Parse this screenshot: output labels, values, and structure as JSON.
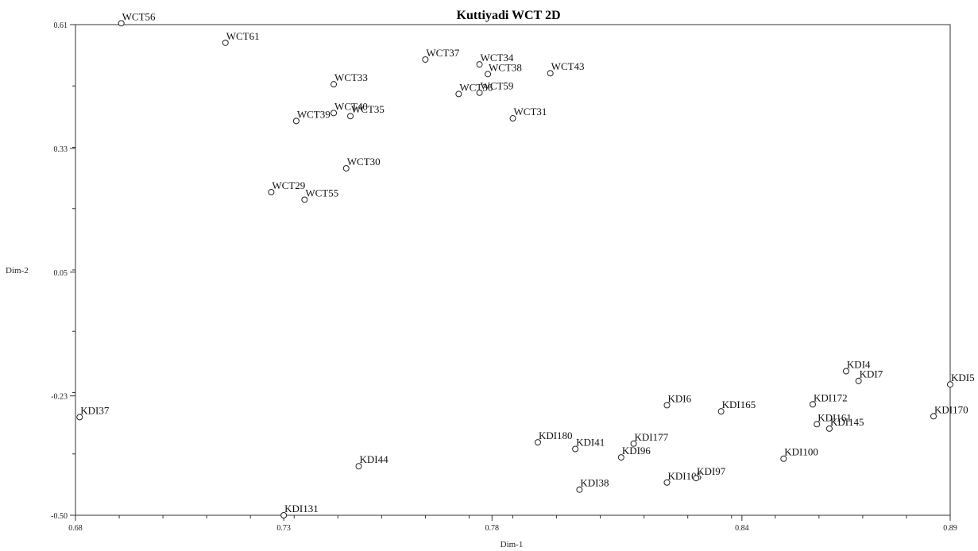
{
  "chart_data": {
    "type": "scatter",
    "title": "Kuttiyadi WCT 2D",
    "xlabel": "Dim-1",
    "ylabel": "Dim-2",
    "xlim": [
      0.68,
      0.89
    ],
    "ylim": [
      -0.5,
      0.61
    ],
    "xticks": [
      "0.68",
      "0.73",
      "0.78",
      "0.84",
      "0.89"
    ],
    "xtick_values": [
      0.68,
      0.73,
      0.78,
      0.84,
      0.89
    ],
    "yticks": [
      "0.61",
      "0.33",
      "0.05",
      "-0.23",
      "-0.50"
    ],
    "ytick_values": [
      0.61,
      0.33,
      0.05,
      -0.23,
      -0.5
    ],
    "grid": false,
    "points": [
      {
        "label": "WCT56",
        "x": 0.691,
        "y": 0.613
      },
      {
        "label": "WCT61",
        "x": 0.716,
        "y": 0.569
      },
      {
        "label": "WCT37",
        "x": 0.764,
        "y": 0.531
      },
      {
        "label": "WCT34",
        "x": 0.777,
        "y": 0.52
      },
      {
        "label": "WCT38",
        "x": 0.779,
        "y": 0.498
      },
      {
        "label": "WCT43",
        "x": 0.794,
        "y": 0.5
      },
      {
        "label": "WCT33",
        "x": 0.742,
        "y": 0.475
      },
      {
        "label": "WCT36",
        "x": 0.772,
        "y": 0.453
      },
      {
        "label": "WCT59",
        "x": 0.777,
        "y": 0.456
      },
      {
        "label": "WCT40",
        "x": 0.742,
        "y": 0.41
      },
      {
        "label": "WCT35",
        "x": 0.746,
        "y": 0.403
      },
      {
        "label": "WCT39",
        "x": 0.733,
        "y": 0.392
      },
      {
        "label": "WCT31",
        "x": 0.785,
        "y": 0.398
      },
      {
        "label": "WCT30",
        "x": 0.745,
        "y": 0.285
      },
      {
        "label": "WCT29",
        "x": 0.727,
        "y": 0.231
      },
      {
        "label": "WCT55",
        "x": 0.735,
        "y": 0.214
      },
      {
        "label": "KDI37",
        "x": 0.681,
        "y": -0.278
      },
      {
        "label": "KDI131",
        "x": 0.73,
        "y": -0.5
      },
      {
        "label": "KDI44",
        "x": 0.748,
        "y": -0.389
      },
      {
        "label": "KDI38",
        "x": 0.801,
        "y": -0.442
      },
      {
        "label": "KDI180",
        "x": 0.791,
        "y": -0.335
      },
      {
        "label": "KDI41",
        "x": 0.8,
        "y": -0.35
      },
      {
        "label": "KDI96",
        "x": 0.811,
        "y": -0.369
      },
      {
        "label": "KDI177",
        "x": 0.814,
        "y": -0.338
      },
      {
        "label": "KDI6",
        "x": 0.822,
        "y": -0.251
      },
      {
        "label": "KDI165",
        "x": 0.835,
        "y": -0.265
      },
      {
        "label": "KDI105",
        "x": 0.822,
        "y": -0.426
      },
      {
        "label": "KDI97",
        "x": 0.829,
        "y": -0.416
      },
      {
        "label": "KDI100",
        "x": 0.85,
        "y": -0.372
      },
      {
        "label": "KDI172",
        "x": 0.857,
        "y": -0.249
      },
      {
        "label": "KDI161",
        "x": 0.858,
        "y": -0.294
      },
      {
        "label": "KDI145",
        "x": 0.861,
        "y": -0.304
      },
      {
        "label": "KDI4",
        "x": 0.865,
        "y": -0.174
      },
      {
        "label": "KDI7",
        "x": 0.868,
        "y": -0.196
      },
      {
        "label": "KDI5",
        "x": 0.89,
        "y": -0.204
      },
      {
        "label": "KDI170",
        "x": 0.886,
        "y": -0.276
      }
    ]
  }
}
